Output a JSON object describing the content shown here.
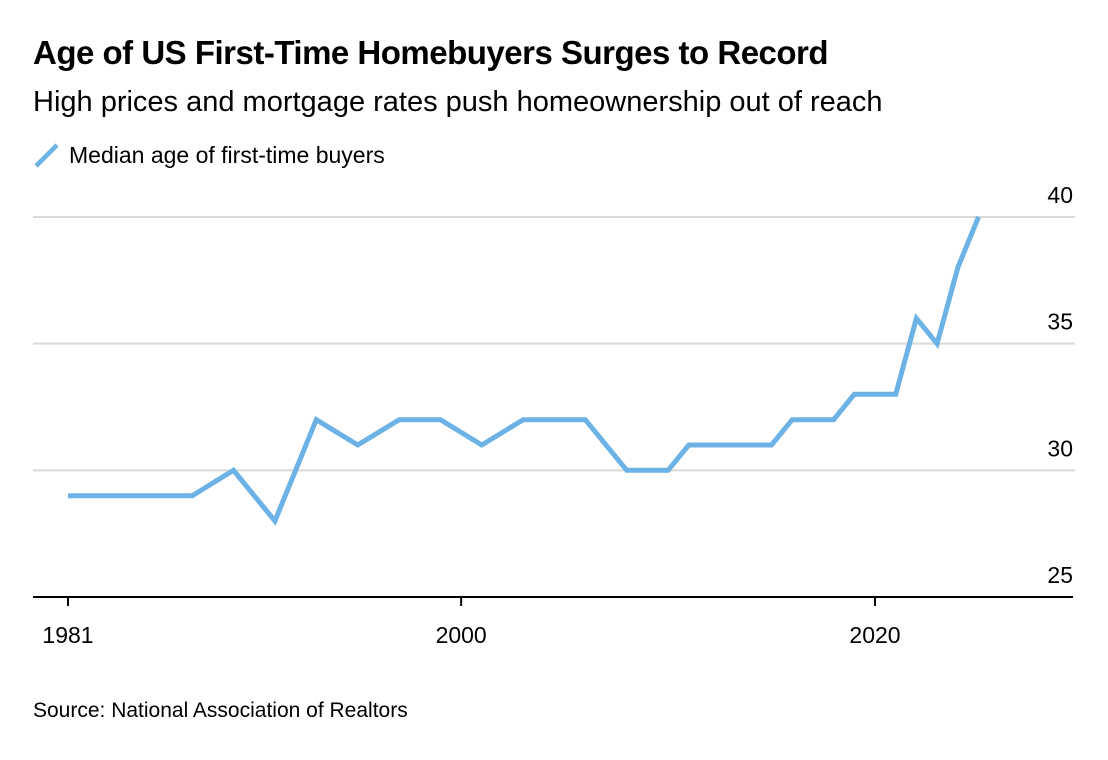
{
  "chart_data": {
    "type": "line",
    "title": "Age of US First-Time Homebuyers Surges to Record",
    "subtitle": "High prices and mortgage rates push homeownership out of reach",
    "source": "Source: National Association of Realtors",
    "xlabel": "",
    "ylabel": "",
    "xlim": [
      1980,
      2030
    ],
    "ylim": [
      25,
      40
    ],
    "x_ticks": [
      1981,
      2000,
      2020
    ],
    "y_ticks": [
      25,
      30,
      35,
      40
    ],
    "grid": true,
    "legend_position": "top-left",
    "series": [
      {
        "name": "Median age of first-time buyers",
        "color": "#6cb2e6",
        "x": [
          1981,
          1985,
          1987,
          1989,
          1991,
          1993,
          1995,
          1997,
          1999,
          2001,
          2003,
          2004,
          2006,
          2008,
          2010,
          2011,
          2013,
          2015,
          2016,
          2018,
          2019,
          2021,
          2022,
          2023,
          2024,
          2025
        ],
        "y": [
          29,
          29,
          29,
          30,
          28,
          32,
          31,
          32,
          32,
          31,
          32,
          32,
          32,
          30,
          30,
          31,
          31,
          31,
          32,
          32,
          33,
          33,
          36,
          35,
          38,
          40
        ]
      }
    ]
  }
}
